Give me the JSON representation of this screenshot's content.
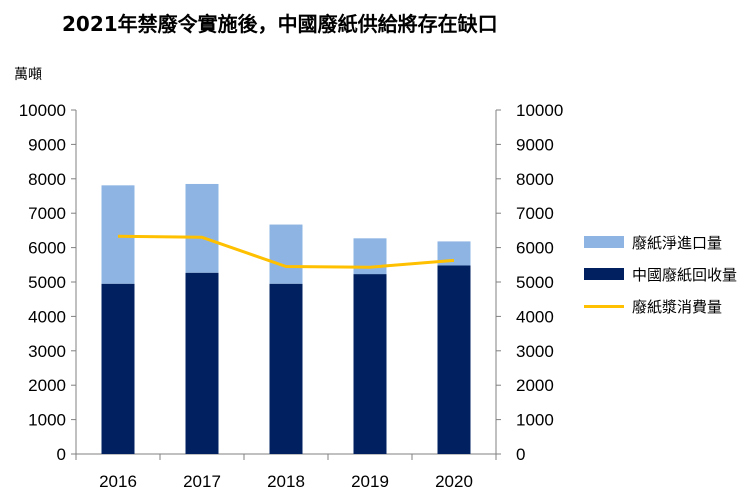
{
  "title": "2021年禁廢令實施後，中國廢紙供給將存在缺口",
  "unit_label": "萬噸",
  "colors": {
    "imports": "#8eb4e3",
    "domestic": "#002060",
    "consumption": "#ffc000",
    "axis": "#808080"
  },
  "chart_data": {
    "type": "bar",
    "categories": [
      "2016",
      "2017",
      "2018",
      "2019",
      "2020"
    ],
    "ylim": [
      0,
      10000
    ],
    "yticks": [
      0,
      1000,
      2000,
      3000,
      4000,
      5000,
      6000,
      7000,
      8000,
      9000,
      10000
    ],
    "stacked": true,
    "series": [
      {
        "name": "中國廢紙回收量",
        "kind": "bar",
        "values": [
          4950,
          5270,
          4950,
          5230,
          5480
        ]
      },
      {
        "name": "廢紙淨進口量",
        "kind": "bar",
        "values": [
          2860,
          2580,
          1720,
          1040,
          700
        ]
      },
      {
        "name": "廢紙漿消費量",
        "kind": "line",
        "values": [
          6330,
          6300,
          5450,
          5430,
          5630
        ]
      }
    ],
    "legend_position": "right",
    "secondary_y_axis": true,
    "grid": false
  }
}
